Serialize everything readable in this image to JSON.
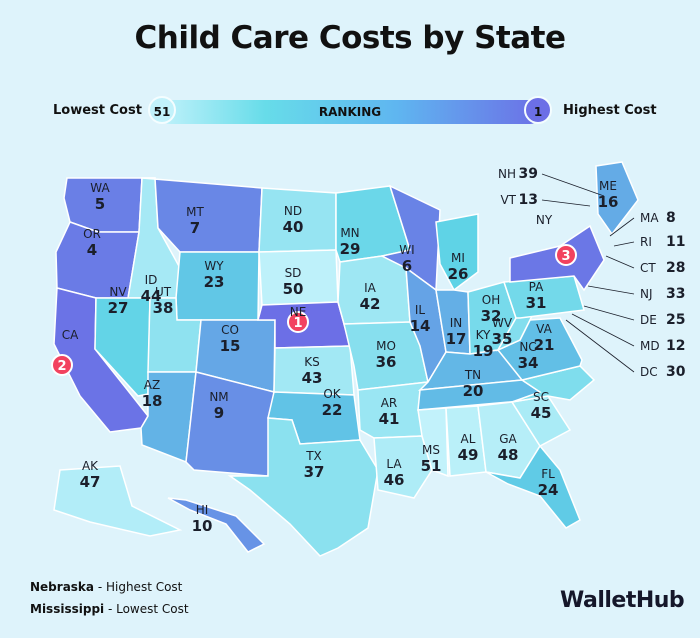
{
  "title": "Child Care Costs by State",
  "legend": {
    "low_label": "Lowest Cost",
    "high_label": "Highest Cost",
    "bar_label": "RANKING",
    "low_value": "51",
    "high_value": "1"
  },
  "colors": {
    "rank_scale_low": "#c2f2fb",
    "rank_scale_mid": "#5fd3e6",
    "rank_scale_high": "#6c6fe6",
    "marker": "#f2425f"
  },
  "states": [
    {
      "abbr": "WA",
      "rank": 5
    },
    {
      "abbr": "OR",
      "rank": 4
    },
    {
      "abbr": "CA",
      "rank": 2
    },
    {
      "abbr": "ID",
      "rank": 44
    },
    {
      "abbr": "NV",
      "rank": 27
    },
    {
      "abbr": "MT",
      "rank": 7
    },
    {
      "abbr": "WY",
      "rank": 23
    },
    {
      "abbr": "UT",
      "rank": 38
    },
    {
      "abbr": "AZ",
      "rank": 18
    },
    {
      "abbr": "CO",
      "rank": 15
    },
    {
      "abbr": "NM",
      "rank": 9
    },
    {
      "abbr": "ND",
      "rank": 40
    },
    {
      "abbr": "SD",
      "rank": 50
    },
    {
      "abbr": "NE",
      "rank": 1
    },
    {
      "abbr": "KS",
      "rank": 43
    },
    {
      "abbr": "OK",
      "rank": 22
    },
    {
      "abbr": "TX",
      "rank": 37
    },
    {
      "abbr": "MN",
      "rank": 29
    },
    {
      "abbr": "IA",
      "rank": 42
    },
    {
      "abbr": "MO",
      "rank": 36
    },
    {
      "abbr": "AR",
      "rank": 41
    },
    {
      "abbr": "LA",
      "rank": 46
    },
    {
      "abbr": "WI",
      "rank": 6
    },
    {
      "abbr": "IL",
      "rank": 14
    },
    {
      "abbr": "MI",
      "rank": 26
    },
    {
      "abbr": "IN",
      "rank": 17
    },
    {
      "abbr": "OH",
      "rank": 32
    },
    {
      "abbr": "KY",
      "rank": 19
    },
    {
      "abbr": "TN",
      "rank": 20
    },
    {
      "abbr": "MS",
      "rank": 51
    },
    {
      "abbr": "AL",
      "rank": 49
    },
    {
      "abbr": "GA",
      "rank": 48
    },
    {
      "abbr": "FL",
      "rank": 24
    },
    {
      "abbr": "SC",
      "rank": 45
    },
    {
      "abbr": "NC",
      "rank": 34
    },
    {
      "abbr": "VA",
      "rank": 21
    },
    {
      "abbr": "WV",
      "rank": 35
    },
    {
      "abbr": "PA",
      "rank": 31
    },
    {
      "abbr": "NY",
      "rank": 3
    },
    {
      "abbr": "ME",
      "rank": 16
    },
    {
      "abbr": "AK",
      "rank": 47
    },
    {
      "abbr": "HI",
      "rank": 10
    }
  ],
  "callouts": [
    {
      "abbr": "NH",
      "rank": 39
    },
    {
      "abbr": "VT",
      "rank": 13
    },
    {
      "abbr": "MA",
      "rank": 8
    },
    {
      "abbr": "RI",
      "rank": 11
    },
    {
      "abbr": "CT",
      "rank": 28
    },
    {
      "abbr": "NJ",
      "rank": 33
    },
    {
      "abbr": "DE",
      "rank": 25
    },
    {
      "abbr": "MD",
      "rank": 12
    },
    {
      "abbr": "DC",
      "rank": 30
    }
  ],
  "notes": {
    "highest_state": "Nebraska",
    "highest_suffix": " - Highest Cost",
    "lowest_state": "Mississippi",
    "lowest_suffix": " - Lowest Cost"
  },
  "brand": "WalletHub"
}
